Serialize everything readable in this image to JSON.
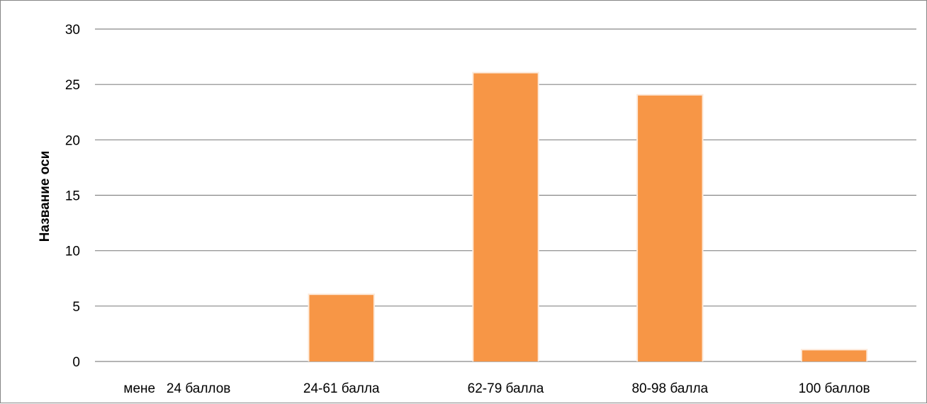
{
  "chart_data": {
    "type": "bar",
    "title": "",
    "xlabel": "",
    "ylabel": "Название оси",
    "categories": [
      "мене   24 баллов",
      "24-61 балла",
      "62-79 балла",
      "80-98 балла",
      "100 баллов"
    ],
    "values": [
      0,
      6,
      26,
      24,
      1
    ],
    "ylim": [
      0,
      30
    ],
    "yticks": [
      0,
      5,
      10,
      15,
      20,
      25,
      30
    ],
    "grid": true,
    "legend": "none",
    "colors": {
      "bar": "#f79646",
      "grid": "#868686",
      "text": "#000000"
    }
  }
}
